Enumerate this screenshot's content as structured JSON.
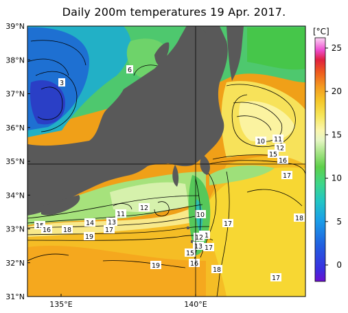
{
  "title": "Daily 200m temperatures 19 Apr. 2017.",
  "map": {
    "lat_labels": [
      "39°N",
      "38°N",
      "37°N",
      "36°N",
      "35°N",
      "34°N",
      "33°N",
      "32°N",
      "31°N"
    ],
    "lon_labels": [
      "135°E",
      "140°E"
    ],
    "land_color": "#595959",
    "isotherm_labels": [
      "3",
      "6",
      "10",
      "11",
      "12",
      "15",
      "16",
      "17",
      "10",
      "11",
      "12",
      "13",
      "15",
      "16",
      "17",
      "15",
      "16",
      "18",
      "14",
      "13",
      "17",
      "19",
      "19",
      "18",
      "17",
      "18",
      "17",
      "11",
      "12"
    ]
  },
  "colorbar": {
    "unit": "[°C]",
    "ticks": [
      "25",
      "20",
      "15",
      "10",
      "5",
      "0"
    ],
    "colors": [
      "#7b1fd6",
      "#2040d8",
      "#1e90e0",
      "#22c2c8",
      "#3ed58e",
      "#5cd04a",
      "#9be07a",
      "#d8f0b0",
      "#fbf7b0",
      "#f7ec60",
      "#f5d52a",
      "#f5b020",
      "#f0781e",
      "#e83a1e",
      "#e01e5a",
      "#f05ad0",
      "#f6a0e8",
      "#fbd8f4"
    ]
  }
}
